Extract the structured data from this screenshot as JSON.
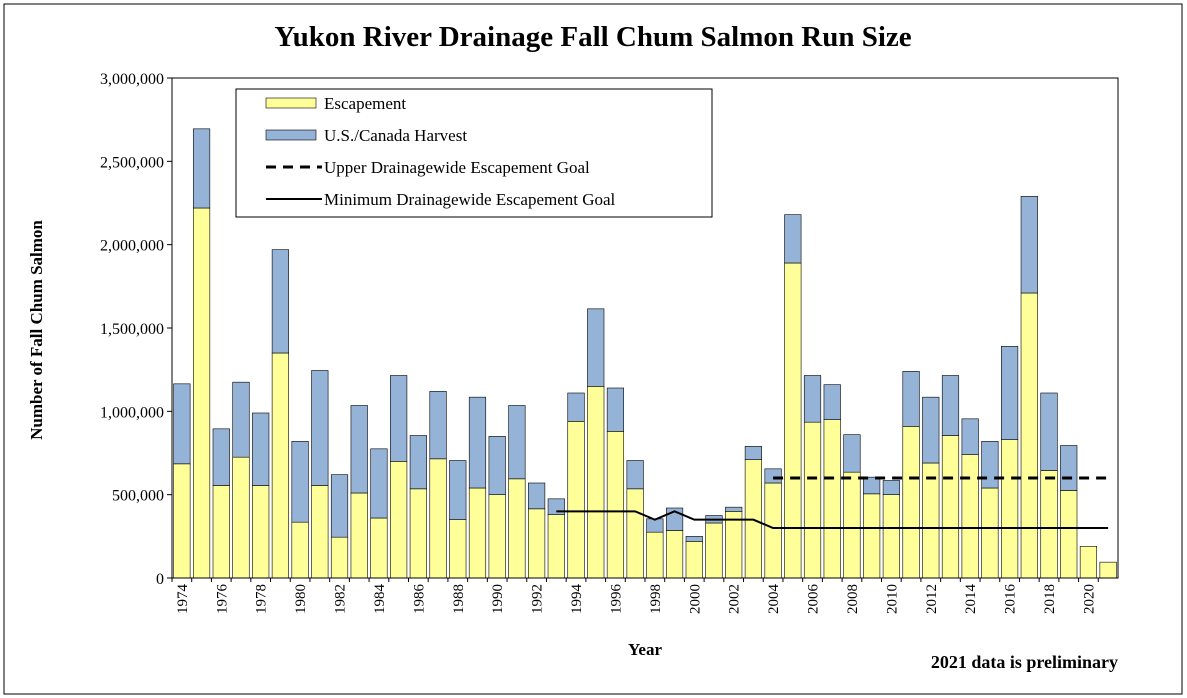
{
  "chart_data": {
    "type": "bar",
    "stacked": true,
    "title": "Yukon River Drainage Fall Chum Salmon Run Size",
    "x_label": "Year",
    "y_label": "Number of Fall Chum Salmon",
    "note": "2021 data is preliminary",
    "categories": [
      "1974",
      null,
      "1976",
      null,
      "1978",
      null,
      "1980",
      null,
      "1982",
      null,
      "1984",
      null,
      "1986",
      null,
      "1988",
      null,
      "1990",
      null,
      "1992",
      null,
      "1994",
      null,
      "1996",
      null,
      "1998",
      null,
      "2000",
      null,
      "2002",
      null,
      "2004",
      null,
      "2006",
      null,
      "2008",
      null,
      "2010",
      null,
      "2012",
      null,
      "2014",
      null,
      "2016",
      null,
      "2018",
      null,
      "2020",
      null
    ],
    "series": [
      {
        "name": "Escapement",
        "kind": "bar",
        "color": "#ffff99",
        "values": [
          685000,
          2220000,
          555000,
          725000,
          555000,
          1350000,
          335000,
          555000,
          245000,
          510000,
          360000,
          700000,
          535000,
          715000,
          350000,
          540000,
          500000,
          595000,
          415000,
          380000,
          940000,
          1150000,
          880000,
          535000,
          275000,
          285000,
          220000,
          330000,
          400000,
          710000,
          570000,
          1890000,
          935000,
          950000,
          635000,
          505000,
          500000,
          910000,
          690000,
          855000,
          740000,
          540000,
          830000,
          1710000,
          645000,
          525000,
          190000,
          95000
        ]
      },
      {
        "name": "U.S./Canada Harvest",
        "kind": "bar",
        "color": "#95b3d7",
        "values": [
          480000,
          475000,
          340000,
          450000,
          435000,
          620000,
          485000,
          690000,
          375000,
          525000,
          415000,
          515000,
          320000,
          405000,
          355000,
          545000,
          350000,
          440000,
          155000,
          95000,
          170000,
          465000,
          260000,
          170000,
          80000,
          135000,
          30000,
          45000,
          25000,
          80000,
          85000,
          290000,
          280000,
          210000,
          225000,
          100000,
          85000,
          330000,
          395000,
          360000,
          215000,
          280000,
          560000,
          580000,
          465000,
          270000,
          0,
          0
        ]
      },
      {
        "name": "Upper Drainagewide Escapement Goal",
        "kind": "line",
        "dash": true,
        "color": "#000000",
        "values": [
          null,
          null,
          null,
          null,
          null,
          null,
          null,
          null,
          null,
          null,
          null,
          null,
          null,
          null,
          null,
          null,
          null,
          null,
          null,
          null,
          null,
          null,
          null,
          null,
          null,
          null,
          null,
          null,
          null,
          null,
          600000,
          600000,
          600000,
          600000,
          600000,
          600000,
          600000,
          600000,
          600000,
          600000,
          600000,
          600000,
          600000,
          600000,
          600000,
          600000,
          600000,
          600000
        ]
      },
      {
        "name": "Minimum Drainagewide Escapement Goal",
        "kind": "line",
        "dash": false,
        "color": "#000000",
        "values": [
          null,
          null,
          null,
          null,
          null,
          null,
          null,
          null,
          null,
          null,
          null,
          null,
          null,
          null,
          null,
          null,
          null,
          null,
          null,
          400000,
          400000,
          400000,
          400000,
          400000,
          350000,
          400000,
          350000,
          350000,
          350000,
          350000,
          300000,
          300000,
          300000,
          300000,
          300000,
          300000,
          300000,
          300000,
          300000,
          300000,
          300000,
          300000,
          300000,
          300000,
          300000,
          300000,
          300000,
          300000
        ]
      }
    ],
    "ylim": [
      0,
      3000000
    ],
    "yticks": [
      0,
      {
        "value": 500000,
        "label": "500,000"
      },
      {
        "value": 1000000,
        "label": "1,000,000"
      },
      {
        "value": 1500000,
        "label": "1,500,000"
      },
      {
        "value": 2000000,
        "label": "2,000,000"
      },
      {
        "value": 2500000,
        "label": "2,500,000"
      },
      {
        "value": 3000000,
        "label": "3,000,000"
      }
    ],
    "grid": false,
    "legend": "top-left"
  }
}
